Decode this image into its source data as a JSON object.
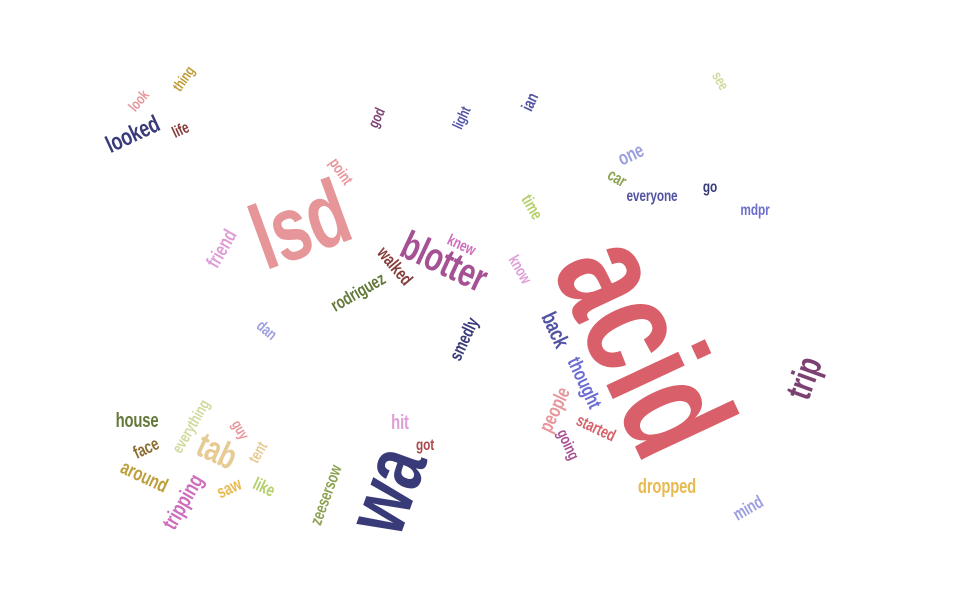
{
  "words": [
    {
      "text": "acid",
      "color": "#d9606b",
      "angle": 65,
      "weight": 100
    },
    {
      "text": "lsd",
      "color": "#e69598",
      "angle": -20,
      "weight": 62
    },
    {
      "text": "wa",
      "color": "#393b79",
      "angle": -70,
      "weight": 58
    },
    {
      "text": "blotter",
      "color": "#a55194",
      "angle": 25,
      "weight": 30
    },
    {
      "text": "trip",
      "color": "#7b4173",
      "angle": -70,
      "weight": 26
    },
    {
      "text": "tab",
      "color": "#e7cb94",
      "angle": 25,
      "weight": 26
    },
    {
      "text": "tripping",
      "color": "#ce6dbd",
      "angle": -60,
      "weight": 20
    },
    {
      "text": "looked",
      "color": "#393b79",
      "angle": -25,
      "weight": 20
    },
    {
      "text": "house",
      "color": "#637939",
      "angle": 0,
      "weight": 18
    },
    {
      "text": "around",
      "color": "#bd9e39",
      "angle": 25,
      "weight": 18
    },
    {
      "text": "friend",
      "color": "#de9ed6",
      "angle": -60,
      "weight": 18
    },
    {
      "text": "rodriguez",
      "color": "#637939",
      "angle": -30,
      "weight": 17
    },
    {
      "text": "back",
      "color": "#5254a3",
      "angle": 65,
      "weight": 18
    },
    {
      "text": "thought",
      "color": "#6b6ecf",
      "angle": 65,
      "weight": 17
    },
    {
      "text": "dropped",
      "color": "#e7ba52",
      "angle": 0,
      "weight": 18
    },
    {
      "text": "walked",
      "color": "#843c39",
      "angle": 50,
      "weight": 16
    },
    {
      "text": "smedly",
      "color": "#393b79",
      "angle": -65,
      "weight": 17
    },
    {
      "text": "zeesersow",
      "color": "#8ca252",
      "angle": -70,
      "weight": 16
    },
    {
      "text": "people",
      "color": "#e7969c",
      "angle": -65,
      "weight": 18
    },
    {
      "text": "started",
      "color": "#d6616b",
      "angle": 25,
      "weight": 16
    },
    {
      "text": "going",
      "color": "#a55194",
      "angle": 65,
      "weight": 15
    },
    {
      "text": "everything",
      "color": "#cedb9c",
      "angle": -60,
      "weight": 15
    },
    {
      "text": "face",
      "color": "#8c6d31",
      "angle": -25,
      "weight": 16
    },
    {
      "text": "hit",
      "color": "#de9ed6",
      "angle": 0,
      "weight": 18
    },
    {
      "text": "got",
      "color": "#ad494a",
      "angle": 0,
      "weight": 15
    },
    {
      "text": "saw",
      "color": "#e7ba52",
      "angle": -25,
      "weight": 16
    },
    {
      "text": "like",
      "color": "#b5cf6b",
      "angle": 25,
      "weight": 16
    },
    {
      "text": "tent",
      "color": "#e7cb94",
      "angle": -60,
      "weight": 15
    },
    {
      "text": "guy",
      "color": "#e7969c",
      "angle": 60,
      "weight": 14
    },
    {
      "text": "dan",
      "color": "#9c9ede",
      "angle": 40,
      "weight": 15
    },
    {
      "text": "mind",
      "color": "#9c9ede",
      "angle": -30,
      "weight": 16
    },
    {
      "text": "time",
      "color": "#b5cf6b",
      "angle": 60,
      "weight": 15
    },
    {
      "text": "know",
      "color": "#de9ed6",
      "angle": 60,
      "weight": 15
    },
    {
      "text": "knew",
      "color": "#ce6dbd",
      "angle": 25,
      "weight": 15
    },
    {
      "text": "point",
      "color": "#e7969c",
      "angle": 55,
      "weight": 15
    },
    {
      "text": "one",
      "color": "#9c9ede",
      "angle": -25,
      "weight": 17
    },
    {
      "text": "car",
      "color": "#8ca252",
      "angle": 30,
      "weight": 16
    },
    {
      "text": "everyone",
      "color": "#5254a3",
      "angle": 0,
      "weight": 15
    },
    {
      "text": "go",
      "color": "#393b79",
      "angle": 0,
      "weight": 15
    },
    {
      "text": "mdpr",
      "color": "#6b6ecf",
      "angle": 0,
      "weight": 15
    },
    {
      "text": "god",
      "color": "#7b4173",
      "angle": -65,
      "weight": 14
    },
    {
      "text": "light",
      "color": "#5254a3",
      "angle": -65,
      "weight": 14
    },
    {
      "text": "ian",
      "color": "#5254a3",
      "angle": -65,
      "weight": 15
    },
    {
      "text": "see",
      "color": "#cedb9c",
      "angle": 60,
      "weight": 14
    },
    {
      "text": "look",
      "color": "#e7969c",
      "angle": -50,
      "weight": 14
    },
    {
      "text": "thing",
      "color": "#bd9e39",
      "angle": -55,
      "weight": 14
    },
    {
      "text": "life",
      "color": "#843c39",
      "angle": -25,
      "weight": 15
    }
  ]
}
